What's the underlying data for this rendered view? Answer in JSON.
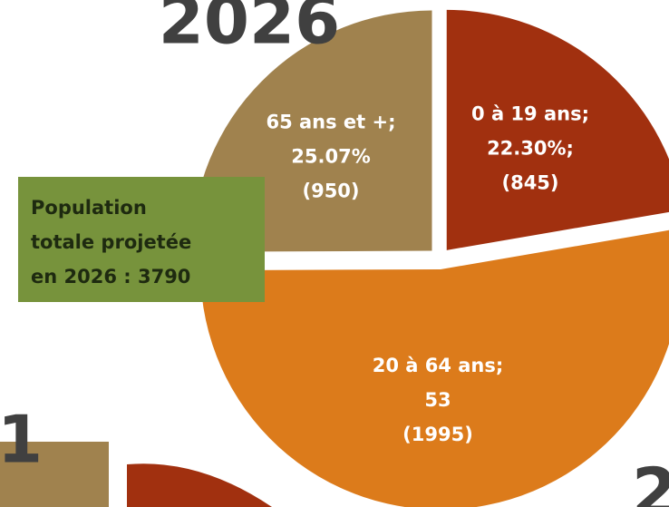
{
  "chart_data": {
    "type": "pie",
    "title": "2026",
    "categories": [
      "0 à 19 ans;",
      "20 à 64 ans;",
      "65 ans et +;"
    ],
    "values": [
      22.3,
      52.63,
      25.07
    ],
    "value_labels": [
      "22.30%;",
      "53",
      "25.07%"
    ],
    "counts": [
      845,
      1995,
      950
    ],
    "count_labels": [
      "(845)",
      "(1995)",
      "(950)"
    ],
    "colors": [
      "#a1300f",
      "#dc7b1b",
      "#a0824e"
    ],
    "annotation": [
      "Population",
      "totale projetée",
      "en 2026 : 3790"
    ],
    "fragments": [
      "1",
      "2"
    ]
  }
}
